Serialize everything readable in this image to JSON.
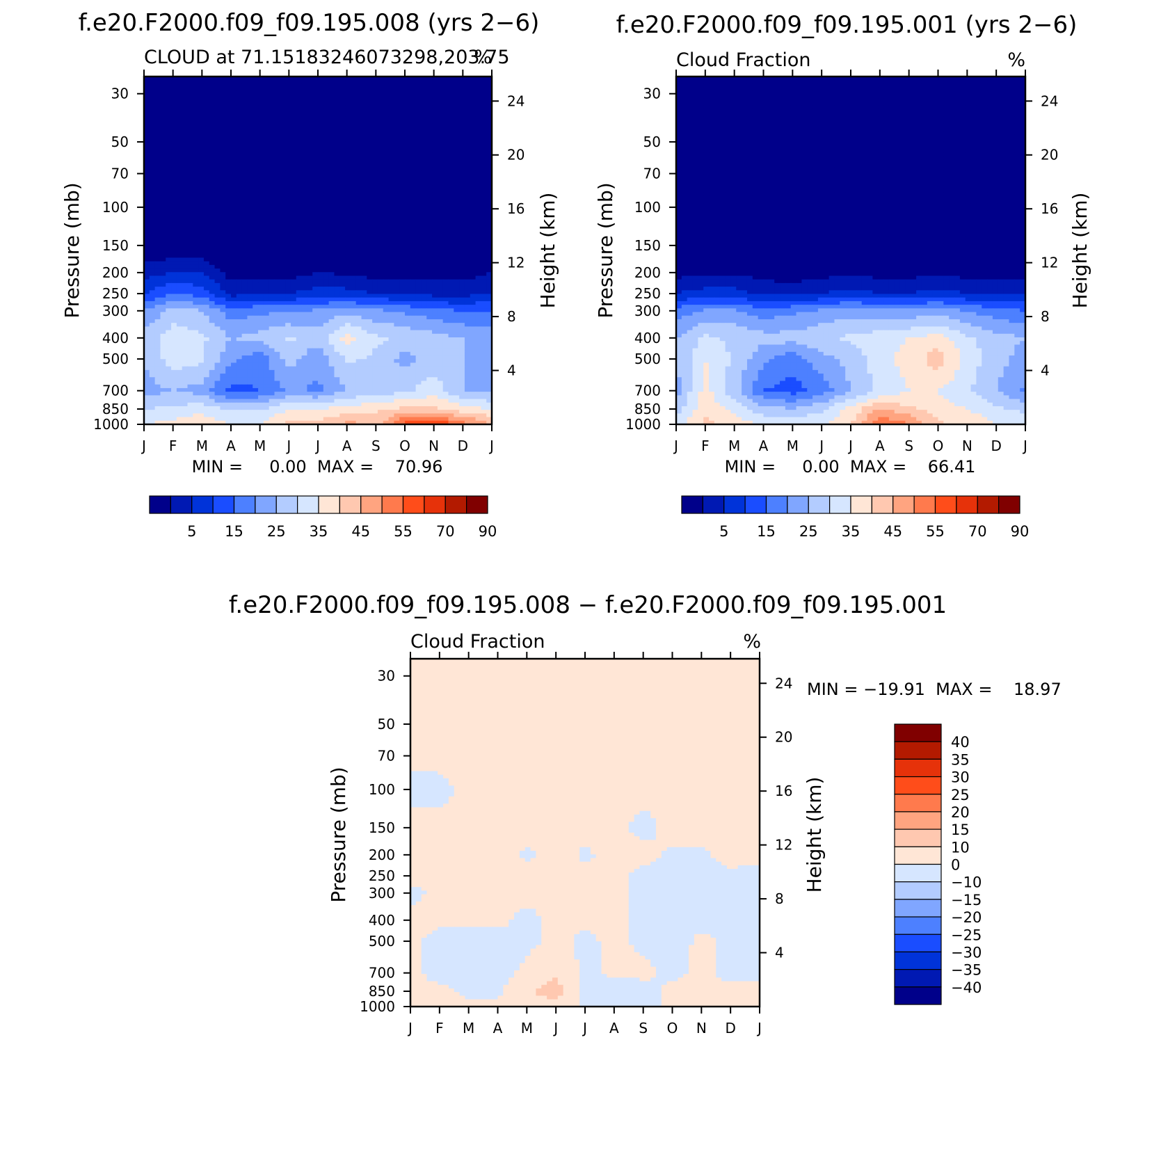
{
  "colors": {
    "abs_scale": [
      "#00008a",
      "#0019b3",
      "#0033d9",
      "#1a4dff",
      "#4d80ff",
      "#80a6ff",
      "#b3ccff",
      "#d6e6ff",
      "#ffe6d6",
      "#ffc8b0",
      "#ffa480",
      "#ff7a4d",
      "#ff4d1a",
      "#e6320a",
      "#b31a00",
      "#800000"
    ],
    "diff_scale": [
      "#00008a",
      "#0019b3",
      "#0033d9",
      "#1a4dff",
      "#4d80ff",
      "#80a6ff",
      "#b3ccff",
      "#d6e6ff",
      "#ffe6d6",
      "#ffc8b0",
      "#ffa480",
      "#ff7a4d",
      "#ff4d1a",
      "#e6320a",
      "#b31a00",
      "#800000"
    ]
  },
  "chart_data": [
    {
      "type": "heatmap",
      "case_title": "f.e20.F2000.f09_f09.195.008 (yrs 2−6)",
      "left_subtitle": "CLOUD at 71.15183246073298,203.75",
      "right_subtitle": "%",
      "xlabel": "",
      "ylabel": "Pressure (mb)",
      "y2label": "Height (km)",
      "x_ticks": [
        "J",
        "F",
        "M",
        "A",
        "M",
        "J",
        "J",
        "A",
        "S",
        "O",
        "N",
        "D",
        "J"
      ],
      "y_ticks": [
        "30",
        "50",
        "70",
        "100",
        "150",
        "200",
        "250",
        "300",
        "400",
        "500",
        "700",
        "850",
        "1000"
      ],
      "y2_ticks": [
        "24",
        "20",
        "16",
        "12",
        "8",
        "4"
      ],
      "min_max_text": "MIN =     0.00  MAX =    70.96",
      "colorbar_labels": [
        "5",
        "15",
        "25",
        "35",
        "45",
        "55",
        "70",
        "90"
      ],
      "contour_levels": [
        5,
        10,
        15,
        20,
        25,
        30,
        35,
        40,
        45,
        50,
        55,
        60,
        70,
        80,
        90
      ],
      "months": [
        "J",
        "F",
        "M",
        "A",
        "M",
        "J",
        "J",
        "A",
        "S",
        "O",
        "N",
        "D",
        "J"
      ],
      "pressure_levels": [
        30,
        50,
        70,
        100,
        150,
        200,
        250,
        300,
        400,
        500,
        700,
        850,
        1000
      ],
      "values": [
        [
          0,
          0,
          0,
          0,
          0,
          0,
          0,
          0,
          0,
          0,
          0,
          0,
          0
        ],
        [
          0,
          0,
          0,
          0,
          0,
          0,
          0,
          0,
          0,
          0,
          0,
          0,
          0
        ],
        [
          0,
          0,
          0,
          0,
          0,
          0,
          0,
          0,
          0,
          0,
          0,
          0,
          0
        ],
        [
          0,
          0,
          0,
          0,
          0,
          0,
          0,
          0,
          0,
          0,
          0,
          0,
          0
        ],
        [
          0,
          0,
          0,
          0,
          0,
          0,
          0,
          0,
          0,
          0,
          0,
          0,
          0
        ],
        [
          8,
          10,
          10,
          3,
          3,
          3,
          5,
          4,
          3,
          3,
          3,
          3,
          5
        ],
        [
          15,
          20,
          18,
          8,
          10,
          10,
          12,
          12,
          10,
          10,
          8,
          8,
          10
        ],
        [
          25,
          32,
          30,
          22,
          24,
          24,
          26,
          28,
          26,
          24,
          22,
          20,
          20
        ],
        [
          32,
          38,
          36,
          30,
          32,
          36,
          32,
          42,
          36,
          34,
          32,
          30,
          28
        ],
        [
          30,
          38,
          36,
          26,
          22,
          32,
          26,
          36,
          34,
          28,
          32,
          30,
          28
        ],
        [
          28,
          30,
          28,
          18,
          20,
          26,
          24,
          30,
          32,
          34,
          38,
          30,
          28
        ],
        [
          35,
          36,
          38,
          34,
          34,
          40,
          40,
          42,
          44,
          46,
          46,
          42,
          40
        ],
        [
          40,
          42,
          44,
          40,
          40,
          46,
          46,
          52,
          48,
          62,
          66,
          58,
          50
        ]
      ]
    },
    {
      "type": "heatmap",
      "case_title": "f.e20.F2000.f09_f09.195.001 (yrs 2−6)",
      "left_subtitle": "Cloud Fraction",
      "right_subtitle": "%",
      "xlabel": "",
      "ylabel": "Pressure (mb)",
      "y2label": "Height (km)",
      "x_ticks": [
        "J",
        "F",
        "M",
        "A",
        "M",
        "J",
        "J",
        "A",
        "S",
        "O",
        "N",
        "D",
        "J"
      ],
      "y_ticks": [
        "30",
        "50",
        "70",
        "100",
        "150",
        "200",
        "250",
        "300",
        "400",
        "500",
        "700",
        "850",
        "1000"
      ],
      "y2_ticks": [
        "24",
        "20",
        "16",
        "12",
        "8",
        "4"
      ],
      "min_max_text": "MIN =     0.00  MAX =    66.41",
      "colorbar_labels": [
        "5",
        "15",
        "25",
        "35",
        "45",
        "55",
        "70",
        "90"
      ],
      "contour_levels": [
        5,
        10,
        15,
        20,
        25,
        30,
        35,
        40,
        45,
        50,
        55,
        60,
        70,
        80,
        90
      ],
      "months": [
        "J",
        "F",
        "M",
        "A",
        "M",
        "J",
        "J",
        "A",
        "S",
        "O",
        "N",
        "D",
        "J"
      ],
      "pressure_levels": [
        30,
        50,
        70,
        100,
        150,
        200,
        250,
        300,
        400,
        500,
        700,
        850,
        1000
      ],
      "values": [
        [
          0,
          0,
          0,
          0,
          0,
          0,
          0,
          0,
          0,
          0,
          0,
          0,
          0
        ],
        [
          0,
          0,
          0,
          0,
          0,
          0,
          0,
          0,
          0,
          0,
          0,
          0,
          0
        ],
        [
          0,
          0,
          0,
          0,
          0,
          0,
          0,
          0,
          0,
          0,
          0,
          0,
          0
        ],
        [
          0,
          0,
          0,
          0,
          0,
          0,
          0,
          0,
          0,
          0,
          0,
          0,
          0
        ],
        [
          0,
          0,
          0,
          0,
          0,
          0,
          0,
          0,
          0,
          0,
          0,
          0,
          0
        ],
        [
          3,
          4,
          4,
          3,
          2,
          3,
          4,
          3,
          3,
          4,
          3,
          3,
          3
        ],
        [
          10,
          12,
          12,
          9,
          8,
          10,
          12,
          10,
          10,
          12,
          10,
          9,
          9
        ],
        [
          22,
          26,
          26,
          22,
          24,
          26,
          28,
          26,
          26,
          28,
          25,
          22,
          20
        ],
        [
          30,
          36,
          34,
          32,
          32,
          34,
          36,
          38,
          40,
          42,
          36,
          32,
          30
        ],
        [
          30,
          40,
          34,
          26,
          22,
          28,
          32,
          38,
          42,
          48,
          38,
          32,
          28
        ],
        [
          28,
          42,
          32,
          20,
          18,
          22,
          30,
          36,
          40,
          40,
          36,
          30,
          24
        ],
        [
          32,
          44,
          38,
          32,
          30,
          34,
          42,
          50,
          46,
          42,
          40,
          36,
          34
        ],
        [
          38,
          46,
          44,
          38,
          38,
          40,
          44,
          60,
          56,
          46,
          44,
          40,
          38
        ]
      ]
    },
    {
      "type": "heatmap",
      "case_title": "f.e20.F2000.f09_f09.195.008 − f.e20.F2000.f09_f09.195.001",
      "left_subtitle": "Cloud Fraction",
      "right_subtitle": "%",
      "xlabel": "",
      "ylabel": "Pressure (mb)",
      "y2label": "Height (km)",
      "x_ticks": [
        "J",
        "F",
        "M",
        "A",
        "M",
        "J",
        "J",
        "A",
        "S",
        "O",
        "N",
        "D",
        "J"
      ],
      "y_ticks": [
        "30",
        "50",
        "70",
        "100",
        "150",
        "200",
        "250",
        "300",
        "400",
        "500",
        "700",
        "850",
        "1000"
      ],
      "y2_ticks": [
        "24",
        "20",
        "16",
        "12",
        "8",
        "4"
      ],
      "min_max_text": "MIN = −19.91  MAX =    18.97",
      "colorbar_labels": [
        "40",
        "35",
        "30",
        "25",
        "20",
        "15",
        "10",
        "0",
        "−10",
        "−15",
        "−20",
        "−25",
        "−30",
        "−35",
        "−40"
      ],
      "contour_levels": [
        -40,
        -35,
        -30,
        -25,
        -20,
        -15,
        -10,
        0,
        10,
        15,
        20,
        25,
        30,
        35,
        40
      ],
      "months": [
        "J",
        "F",
        "M",
        "A",
        "M",
        "J",
        "J",
        "A",
        "S",
        "O",
        "N",
        "D",
        "J"
      ],
      "pressure_levels": [
        30,
        50,
        70,
        100,
        150,
        200,
        250,
        300,
        400,
        500,
        700,
        850,
        1000
      ],
      "values": [
        [
          2,
          2,
          2,
          2,
          2,
          2,
          2,
          2,
          2,
          2,
          2,
          2,
          2
        ],
        [
          2,
          2,
          2,
          2,
          2,
          2,
          2,
          2,
          2,
          2,
          2,
          2,
          2
        ],
        [
          2,
          2,
          2,
          2,
          2,
          2,
          2,
          2,
          2,
          2,
          2,
          2,
          2
        ],
        [
          -2,
          -2,
          2,
          2,
          2,
          2,
          2,
          2,
          2,
          2,
          2,
          2,
          2
        ],
        [
          2,
          2,
          2,
          2,
          2,
          2,
          2,
          2,
          -2,
          2,
          2,
          2,
          2
        ],
        [
          2,
          2,
          2,
          2,
          -1,
          2,
          -1,
          2,
          2,
          -1,
          -1,
          2,
          2
        ],
        [
          2,
          4,
          6,
          3,
          2,
          3,
          2,
          2,
          -2,
          -3,
          -3,
          -1,
          -3
        ],
        [
          -2,
          2,
          5,
          2,
          2,
          2,
          2,
          2,
          -2,
          -3,
          -3,
          -3,
          -3
        ],
        [
          2,
          2,
          2,
          2,
          -2,
          2,
          2,
          2,
          -2,
          -3,
          -3,
          -3,
          -3
        ],
        [
          2,
          -3,
          -4,
          -3,
          -2,
          2,
          -2,
          2,
          -2,
          -4,
          2,
          -2,
          -2
        ],
        [
          2,
          -3,
          -3,
          -3,
          2,
          8,
          -2,
          2,
          2,
          -2,
          2,
          -2,
          -2
        ],
        [
          2,
          2,
          -2,
          -2,
          8,
          15,
          -3,
          -8,
          -3,
          2,
          2,
          2,
          2
        ],
        [
          2,
          2,
          2,
          2,
          6,
          6,
          -2,
          -4,
          -3,
          2,
          8,
          6,
          5
        ]
      ]
    }
  ]
}
